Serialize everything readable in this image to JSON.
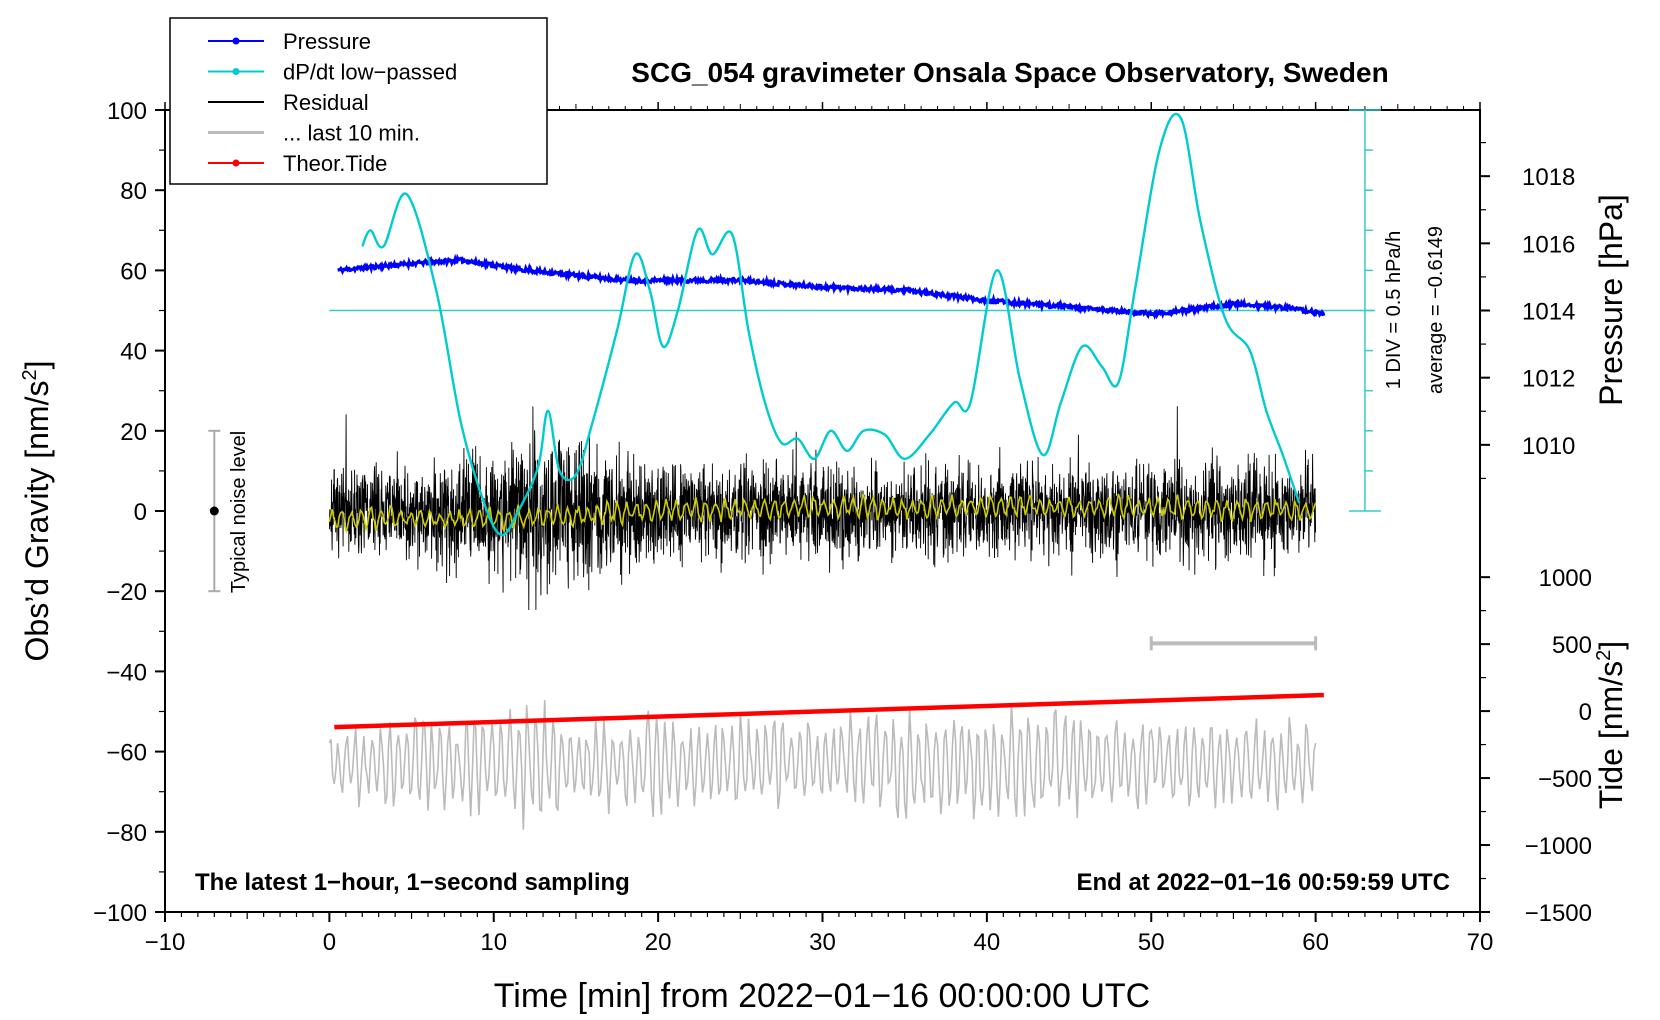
{
  "chart_data": {
    "type": "line",
    "title": "SCG_054 gravimeter Onsala Space Observatory, Sweden",
    "xlabel": "Time [min] from 2022−01−16 00:00:00 UTC",
    "ylabel_left_main": "Obs’d Gravity [nm/s",
    "ylabel_left_sup": "2",
    "ylabel_left_end": "]",
    "ylabel_right_pressure": "Pressure [hPa]",
    "ylabel_right_tide_main": "Tide [nm/s",
    "ylabel_right_tide_sup": "2",
    "ylabel_right_tide_end": "]",
    "xlim": [
      -10,
      70
    ],
    "ylim": [
      -100,
      100
    ],
    "x_ticks": [
      "−10",
      "0",
      "10",
      "20",
      "30",
      "40",
      "50",
      "60",
      "70"
    ],
    "x_tick_values": [
      -10,
      0,
      10,
      20,
      30,
      40,
      50,
      60,
      70
    ],
    "y_ticks": [
      "100",
      "80",
      "60",
      "40",
      "20",
      "0",
      "−20",
      "−40",
      "−60",
      "−80",
      "−100"
    ],
    "y_tick_values": [
      100,
      80,
      60,
      40,
      20,
      0,
      -20,
      -40,
      -60,
      -80,
      -100
    ],
    "pressure_axis": {
      "ticks": [
        "1018",
        "1016",
        "1014",
        "1012",
        "1010"
      ],
      "tick_values": [
        1018,
        1016,
        1014,
        1012,
        1010
      ],
      "map": {
        "hpa_a": 1010,
        "grav_a": 16.5,
        "hpa_b": 1018,
        "grav_b": 83.5
      }
    },
    "tide_axis": {
      "ticks": [
        "1000",
        "500",
        "0",
        "−500",
        "−1000",
        "−1500"
      ],
      "tick_values": [
        1000,
        500,
        0,
        -500,
        -1000,
        -1500
      ],
      "map": {
        "nms2_a": 1000,
        "grav_a": -16.5,
        "nms2_b": -1500,
        "grav_b": -100
      }
    },
    "legend": {
      "position": "top-left",
      "entries": [
        {
          "label": "Pressure",
          "color": "#0000ff",
          "marker": true
        },
        {
          "label": "dP/dt low−passed",
          "color": "#00cccc",
          "marker": true
        },
        {
          "label": "Residual",
          "color": "#000000",
          "marker": false
        },
        {
          "label": "... last 10 min.",
          "color": "#bbbbbb",
          "marker": false
        },
        {
          "label": "Theor.Tide",
          "color": "#ff0000",
          "marker": true
        }
      ]
    },
    "annotations": {
      "bottom_left": "The latest 1−hour, 1−second sampling",
      "bottom_right": "End at 2022−01−16 00:59:59 UTC",
      "dpdt_scale": "1 DIV = 0.5 hPa/h",
      "dpdt_average": "average = −0.6149",
      "noise_label": "Typical noise level",
      "noise_bar": {
        "x": -7,
        "y_low": -20,
        "y_high": 20,
        "y_center": 0
      },
      "last10_bar": {
        "x_start": 50,
        "x_end": 60,
        "y": -33
      },
      "dpdt_scale_bar": {
        "x": 63,
        "y_low": 0,
        "y_high": 100,
        "divisions": 10,
        "baseline_y": 50
      }
    },
    "series": [
      {
        "name": "Pressure",
        "color": "#0000ff",
        "unit": "hPa",
        "x": [
          0.5,
          5,
          8,
          12,
          18,
          25,
          30,
          35,
          40,
          45,
          50,
          52,
          55,
          58,
          60.5
        ],
        "y": [
          1015.2,
          1015.4,
          1015.5,
          1015.2,
          1014.9,
          1014.9,
          1014.7,
          1014.6,
          1014.3,
          1014.1,
          1013.9,
          1014.0,
          1014.2,
          1014.1,
          1013.9
        ]
      },
      {
        "name": "dP/dt low-passed",
        "color": "#00cccc",
        "unit": "nm/s2 (plotted)",
        "x": [
          2,
          2.5,
          3.3,
          4.7,
          6.5,
          8,
          9.5,
          10.5,
          11.5,
          12.7,
          13.3,
          14,
          15,
          16,
          17.5,
          18.6,
          19.5,
          20.3,
          21.2,
          22.4,
          23.3,
          24.5,
          25.5,
          26.5,
          27.5,
          28.5,
          29.5,
          30.5,
          31.5,
          32.5,
          33.8,
          35,
          36.5,
          38,
          39,
          40.6,
          42,
          43.4,
          44.5,
          45.8,
          47,
          48,
          49,
          50.5,
          51.8,
          53,
          54.5,
          56,
          57,
          58,
          59
        ],
        "y": [
          66,
          70,
          66,
          79,
          55,
          22,
          1,
          -6,
          0,
          11,
          25,
          10,
          9,
          22,
          45,
          64,
          55,
          41,
          50,
          70,
          64,
          69,
          45,
          27,
          17,
          18,
          13,
          20,
          15,
          20,
          19,
          13,
          19,
          27,
          27,
          60,
          33,
          14,
          27,
          41,
          36,
          32,
          55,
          90,
          98,
          72,
          48,
          40,
          25,
          14,
          2
        ]
      },
      {
        "name": "Residual (smoothed)",
        "color": "#cccc00",
        "amplitude_nms2": 2.5,
        "x": [
          0,
          10,
          20,
          30,
          40,
          50,
          60
        ],
        "y": [
          -2,
          -2,
          0,
          1,
          1,
          1,
          0
        ]
      },
      {
        "name": "Residual",
        "color": "#000000",
        "x_range": [
          0,
          60
        ],
        "amplitude_nms2": 10,
        "envelope_x": [
          0,
          5,
          8,
          10,
          12,
          14,
          16,
          20,
          30,
          40,
          50,
          55,
          58,
          60
        ],
        "envelope_y": [
          8,
          9,
          11,
          12,
          15,
          14,
          12,
          10,
          9,
          9,
          9,
          10,
          10,
          9
        ]
      },
      {
        "name": "... last 10 min.",
        "color": "#bbbbbb",
        "x_range": [
          0,
          60
        ],
        "baseline": -63,
        "amplitude_nms2": 10,
        "envelope_x": [
          0,
          5,
          10,
          12,
          15,
          20,
          25,
          30,
          35,
          40,
          41.5,
          45,
          50,
          55,
          60
        ],
        "envelope_y": [
          7,
          10,
          10,
          15,
          9,
          10,
          10,
          8,
          12,
          10,
          13,
          10,
          9,
          8,
          9
        ]
      },
      {
        "name": "Theor.Tide",
        "color": "#ff0000",
        "unit": "nm/s2",
        "x": [
          0.3,
          60.5
        ],
        "y": [
          -120,
          120
        ]
      }
    ]
  }
}
